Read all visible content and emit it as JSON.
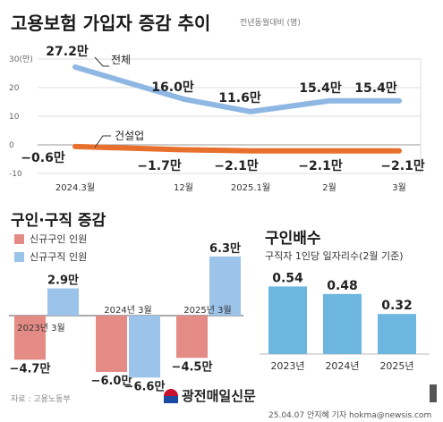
{
  "header": {
    "title": "고용보험 가입자 증감 추이",
    "unit": "전년동월대비 (명)"
  },
  "colors": {
    "total_line": "#8fb7e3",
    "construction_line": "#e8702d",
    "job_offers": "#e58b86",
    "job_seekers": "#9cc3ea",
    "ratio_bar": "#6cb6df"
  },
  "chart_data": [
    {
      "type": "line",
      "title": "고용보험 가입자 증감 추이",
      "subtitle": "전년동월대비 (명)",
      "x": [
        "2024.3",
        "2024.12",
        "2025.1",
        "2025.2",
        "2025.3"
      ],
      "x_tick_labels": [
        "2024.3월",
        "12월",
        "2025.1월",
        "2월",
        "3월"
      ],
      "y_ticks": [
        "30(만)",
        "20",
        "10",
        "0",
        "-10"
      ],
      "ylim": [
        -10,
        30
      ],
      "series": [
        {
          "name": "전체",
          "values": [
            27.2,
            16.0,
            11.6,
            15.4,
            15.4
          ],
          "labels": [
            "27.2만",
            "16.0만",
            "11.6만",
            "15.4만",
            "15.4만"
          ]
        },
        {
          "name": "건설업",
          "values": [
            -0.6,
            -1.7,
            -2.1,
            -2.1,
            -2.1
          ],
          "labels": [
            "−0.6만",
            "−1.7만",
            "−2.1만",
            "−2.1만",
            "−2.1만"
          ]
        }
      ]
    },
    {
      "type": "bar",
      "title": "구인·구직 증감",
      "categories": [
        "2023년 3월",
        "2024년 3월",
        "2025년 3월"
      ],
      "series": [
        {
          "name": "신규구인 인원",
          "values": [
            -4.7,
            -6.0,
            -4.5
          ],
          "labels": [
            "−4.7만",
            "−6.0만",
            "−4.5만"
          ]
        },
        {
          "name": "신규구직 인원",
          "values": [
            2.9,
            -6.6,
            6.3
          ],
          "labels": [
            "2.9만",
            "−6.6만",
            "6.3만"
          ]
        }
      ]
    },
    {
      "type": "bar",
      "title": "구인배수",
      "subtitle": "구직자 1인당 일자리수(2월 기준)",
      "categories": [
        "2023년",
        "2024년",
        "2025년"
      ],
      "values": [
        0.54,
        0.48,
        0.32
      ],
      "labels": [
        "0.54",
        "0.48",
        "0.32"
      ]
    }
  ],
  "footer": {
    "source": "자료 : 고용노동부",
    "brand": "광전매일신문",
    "credit": "25.04.07 안지혜 기자 hokma@newsis.com"
  }
}
